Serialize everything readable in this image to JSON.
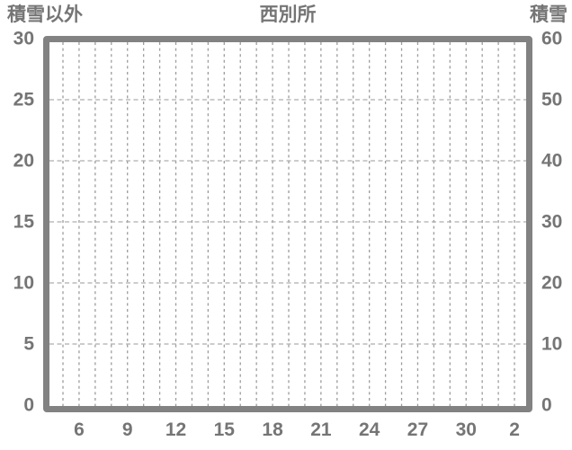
{
  "chart": {
    "colors": {
      "frame": "#828282",
      "grid_vertical": "#9c9c9c",
      "grid_horizontal": "#adadad",
      "text": "#757575",
      "background": "#ffffff"
    }
  },
  "chart_data": {
    "type": "line",
    "title": "西別所",
    "left_axis": {
      "title": "積雪以外",
      "ticks": [
        0,
        5,
        10,
        15,
        20,
        25,
        30
      ],
      "range": [
        0,
        30
      ]
    },
    "right_axis": {
      "title": "積雪",
      "ticks": [
        0,
        10,
        20,
        30,
        40,
        50,
        60
      ],
      "range": [
        0,
        60
      ]
    },
    "x_axis": {
      "tick_labels": [
        "6",
        "9",
        "12",
        "15",
        "18",
        "21",
        "24",
        "27",
        "30",
        "2"
      ],
      "units_between_labels": 3
    },
    "grid": {
      "vertical_lines": 29,
      "horizontal_lines_at_left_values": [
        5,
        10,
        15,
        20,
        25
      ],
      "style": "dashed"
    },
    "series": []
  }
}
